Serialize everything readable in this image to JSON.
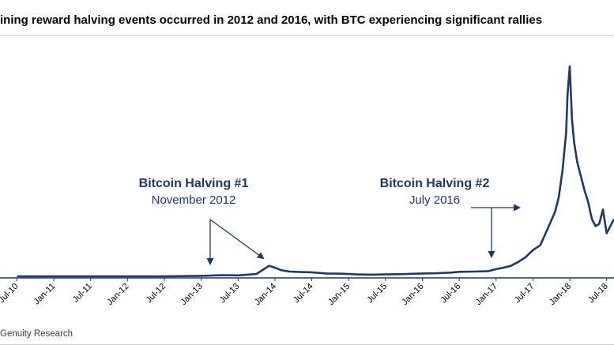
{
  "title": "ining reward halving events occurred in 2012 and 2016, with BTC experiencing significant rallies",
  "footer": "Genuity Research",
  "chart_data": {
    "type": "line",
    "title": "ining reward halving events occurred in 2012 and 2016, with BTC experiencing significant rallies",
    "xlabel": "",
    "ylabel": "",
    "grid": false,
    "legend": "none",
    "series": [
      {
        "name": "BTC price",
        "color": "#1f3864",
        "x": [
          2010.5,
          2011.0,
          2011.5,
          2012.0,
          2012.5,
          2013.0,
          2013.3,
          2013.5,
          2013.75,
          2013.92,
          2014.0,
          2014.08,
          2014.2,
          2014.35,
          2014.5,
          2014.7,
          2014.9,
          2015.0,
          2015.1,
          2015.3,
          2015.5,
          2015.7,
          2015.9,
          2016.0,
          2016.2,
          2016.4,
          2016.5,
          2016.7,
          2016.9,
          2017.0,
          2017.1,
          2017.2,
          2017.3,
          2017.4,
          2017.5,
          2017.6,
          2017.7,
          2017.8,
          2017.85,
          2017.9,
          2017.95,
          2017.97,
          2018.0,
          2018.03,
          2018.06,
          2018.1,
          2018.15,
          2018.2,
          2018.25,
          2018.3,
          2018.35,
          2018.4,
          2018.45,
          2018.5,
          2018.55,
          2018.6
        ],
        "values": [
          0,
          0,
          0,
          0,
          0,
          0.1,
          0.25,
          0.2,
          0.5,
          2.2,
          1.8,
          1.3,
          1.0,
          0.9,
          0.85,
          0.6,
          0.55,
          0.5,
          0.4,
          0.35,
          0.4,
          0.45,
          0.55,
          0.6,
          0.65,
          0.8,
          0.95,
          1.0,
          1.1,
          1.5,
          1.8,
          2.2,
          3.0,
          4.0,
          5.5,
          6.5,
          10.0,
          13.5,
          16.5,
          22.0,
          30.0,
          38.0,
          44.0,
          33.0,
          28.0,
          24.0,
          21.0,
          18.0,
          15.5,
          12.0,
          10.5,
          11.0,
          14.0,
          9.0,
          10.5,
          12.0
        ]
      }
    ],
    "x_ticks": [
      {
        "label": "Jul-10",
        "x": 2010.5
      },
      {
        "label": "Jan-11",
        "x": 2011.0
      },
      {
        "label": "Jul-11",
        "x": 2011.5
      },
      {
        "label": "Jan-12",
        "x": 2012.0
      },
      {
        "label": "Jul-12",
        "x": 2012.5
      },
      {
        "label": "Jan-13",
        "x": 2013.0
      },
      {
        "label": "Jul-13",
        "x": 2013.5
      },
      {
        "label": "Jan-14",
        "x": 2014.0
      },
      {
        "label": "Jul-14",
        "x": 2014.5
      },
      {
        "label": "Jan-15",
        "x": 2015.0
      },
      {
        "label": "Jul-15",
        "x": 2015.5
      },
      {
        "label": "Jan-16",
        "x": 2016.0
      },
      {
        "label": "Jul-16",
        "x": 2016.5
      },
      {
        "label": "Jan-17",
        "x": 2017.0
      },
      {
        "label": "Jul-17",
        "x": 2017.5
      },
      {
        "label": "Jan-18",
        "x": 2018.0
      },
      {
        "label": "Jul-18",
        "x": 2018.5
      }
    ],
    "xlim": [
      2010.27,
      2018.6
    ],
    "ylim": [
      0,
      46
    ],
    "annotations": [
      {
        "title": "Bitcoin Halving #1",
        "subtitle": "November 2012",
        "x": 2012.9,
        "target_x": 2012.9,
        "target_y": 1.0,
        "arrow_style": "two-arrows"
      },
      {
        "title": "Bitcoin Halving #2",
        "subtitle": "July 2016",
        "x": 2016.5,
        "target_x": 2016.5,
        "target_y": 1.6,
        "arrow_style": "elbow"
      }
    ]
  }
}
